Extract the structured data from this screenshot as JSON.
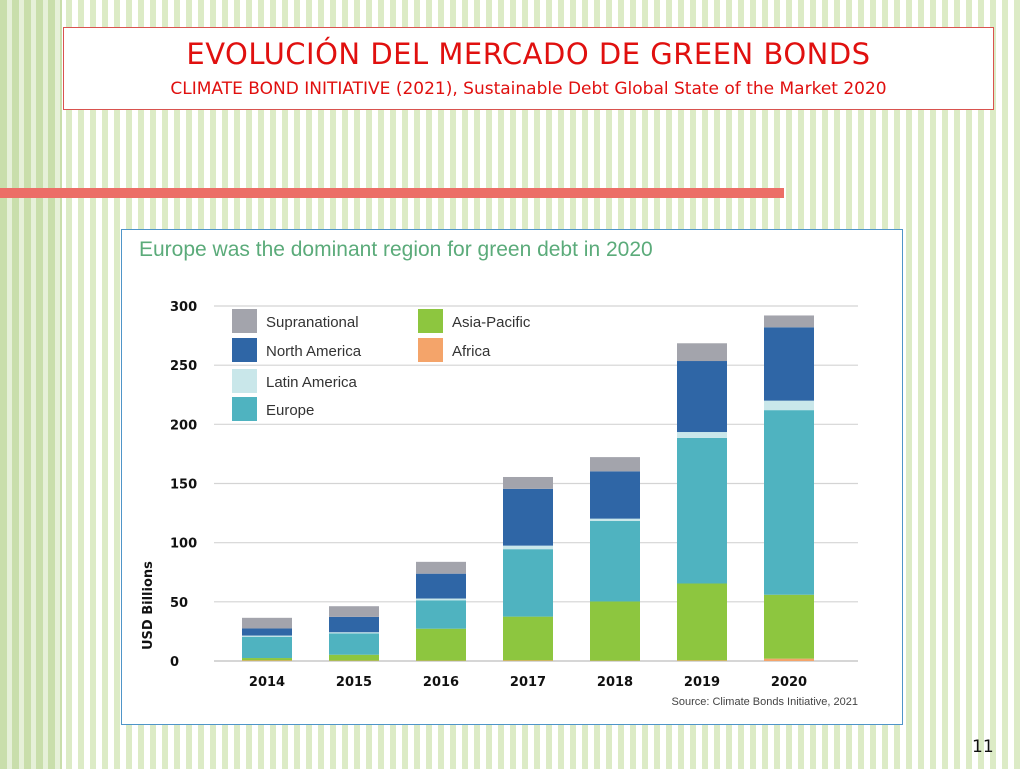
{
  "slide": {
    "title": "EVOLUCIÓN DEL MERCADO DE GREEN BONDS",
    "subtitle": "CLIMATE BOND INITIATIVE (2021), Sustainable Debt Global State of the Market 2020",
    "page_number": "11"
  },
  "colors": {
    "title_red": "#e0100f",
    "Supranational": "#a3a4ac",
    "North America": "#2f66a6",
    "Latin America": "#c9e7ea",
    "Europe": "#4fb3c0",
    "Asia-Pacific": "#8dc63f",
    "Africa": "#f4a46a"
  },
  "chart_data": {
    "type": "bar",
    "stacked": true,
    "title": "Europe was the dominant region for green debt in 2020",
    "ylabel": "USD Billions",
    "xlabel": "",
    "ylim": [
      0,
      300
    ],
    "yticks": [
      0,
      50,
      100,
      150,
      200,
      250,
      300
    ],
    "grid": true,
    "legend": "top-left",
    "categories": [
      "2014",
      "2015",
      "2016",
      "2017",
      "2018",
      "2019",
      "2020"
    ],
    "series": [
      {
        "name": "Africa",
        "values": [
          0.5,
          0.3,
          0.3,
          0.5,
          0.3,
          0.5,
          2
        ]
      },
      {
        "name": "Asia-Pacific",
        "values": [
          2,
          5,
          27,
          37,
          50,
          65,
          54
        ]
      },
      {
        "name": "Europe",
        "values": [
          18,
          18,
          24,
          57,
          68,
          123,
          156
        ]
      },
      {
        "name": "Latin America",
        "values": [
          1,
          1,
          1.5,
          3,
          2,
          5,
          8
        ]
      },
      {
        "name": "North America",
        "values": [
          6,
          13,
          21,
          48,
          40,
          60,
          62
        ]
      },
      {
        "name": "Supranational",
        "values": [
          9,
          9,
          10,
          10,
          12,
          15,
          10
        ]
      }
    ],
    "legend_order": [
      "Supranational",
      "Asia-Pacific",
      "North America",
      "Africa",
      "Latin America",
      "Europe"
    ],
    "source": "Source: Climate Bonds Initiative, 2021"
  }
}
